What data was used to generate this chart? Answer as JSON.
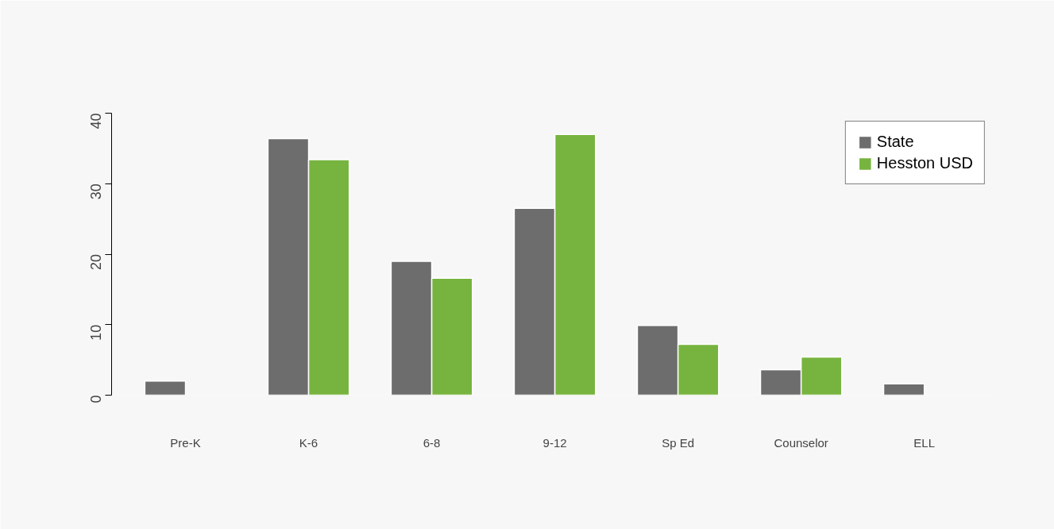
{
  "chart_data": {
    "type": "bar",
    "categories": [
      "Pre-K",
      "K-6",
      "6-8",
      "9-12",
      "Sp Ed",
      "Counselor",
      "ELL"
    ],
    "series": [
      {
        "name": "State",
        "color": "#6d6d6d",
        "values": [
          2.0,
          36.4,
          19.0,
          26.5,
          9.9,
          3.6,
          1.6
        ]
      },
      {
        "name": "Hesston USD",
        "color": "#77b43f",
        "values": [
          null,
          33.4,
          16.6,
          37.0,
          7.2,
          5.4,
          null
        ]
      }
    ],
    "ylim": [
      0,
      40
    ],
    "yticks": [
      0,
      10,
      20,
      30,
      40
    ],
    "grid": false,
    "legend": "top right"
  }
}
